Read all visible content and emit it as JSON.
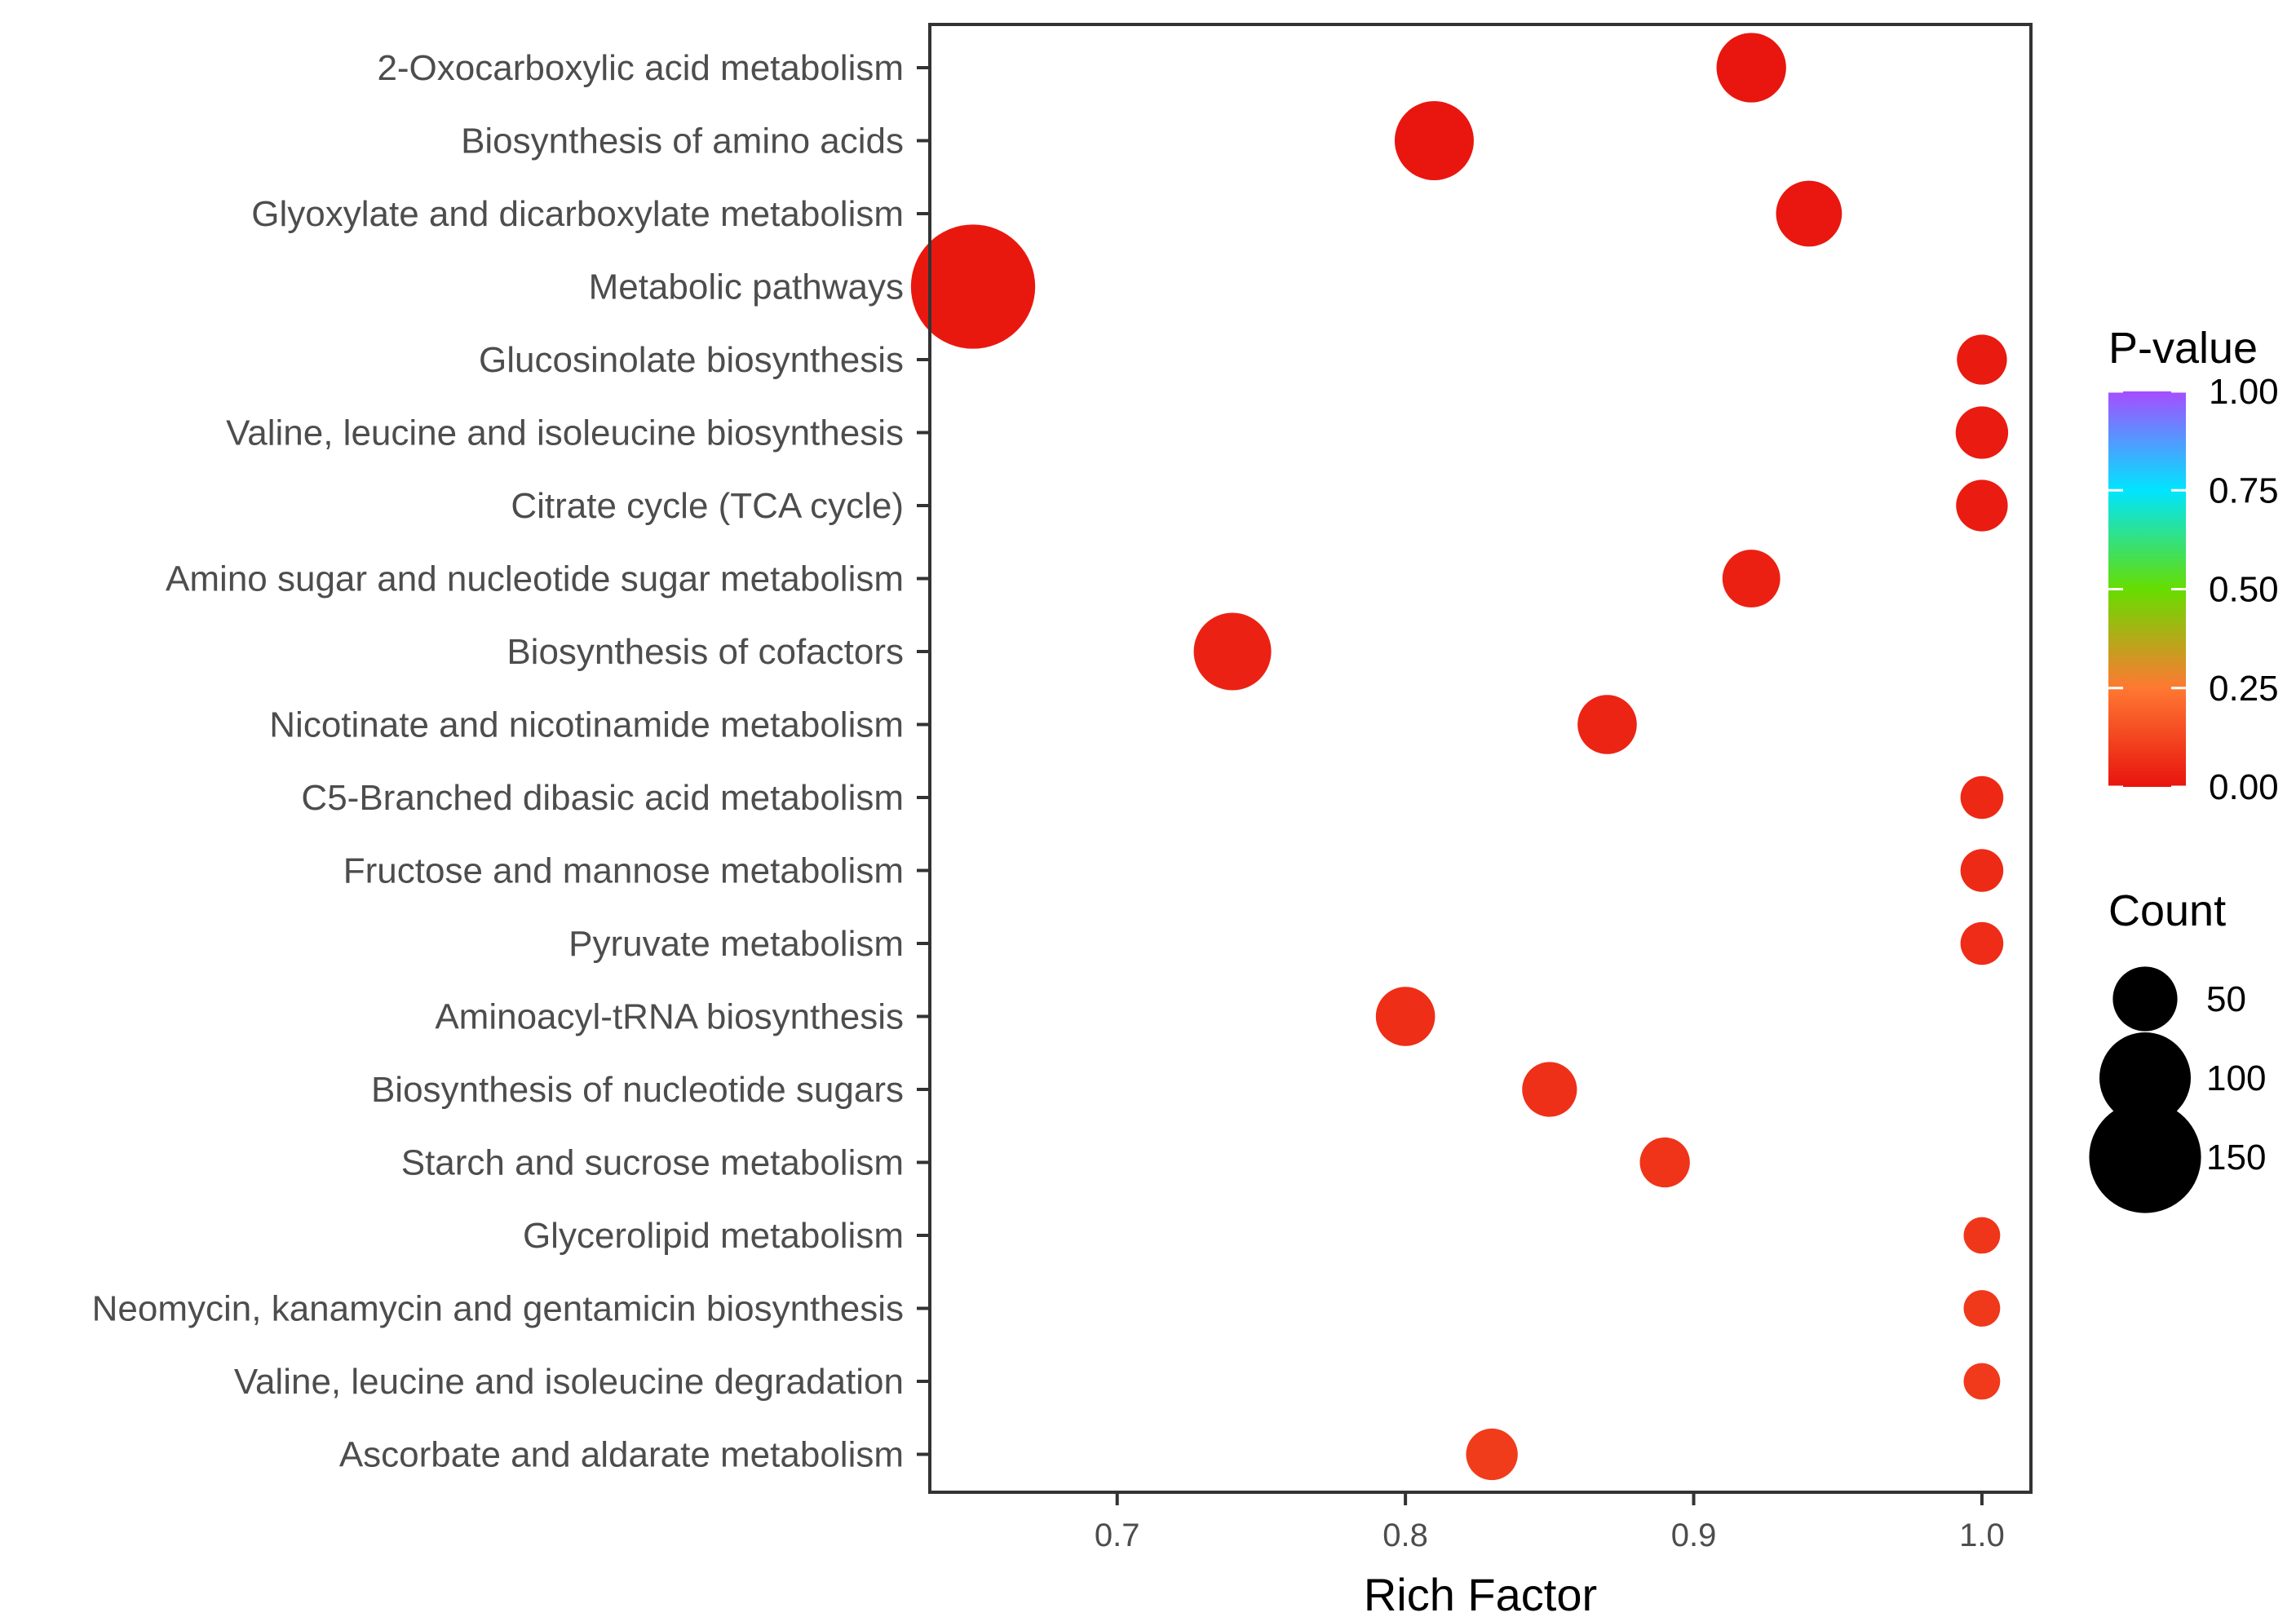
{
  "chart_data": {
    "type": "scatter",
    "subtype": "bubble",
    "title": "",
    "xlabel": "Rich Factor",
    "ylabel": "",
    "xlim": [
      0.635,
      1.017
    ],
    "x_ticks": [
      0.7,
      0.8,
      0.9,
      1.0
    ],
    "x_tick_labels": [
      "0.7",
      "0.8",
      "0.9",
      "1.0"
    ],
    "grid": false,
    "color_legend": {
      "title": "P-value",
      "min": 0.0,
      "max": 1.0,
      "ticks": [
        "1.00",
        "0.75",
        "0.50",
        "0.25",
        "0.00"
      ],
      "tick_values": [
        1.0,
        0.75,
        0.5,
        0.25,
        0.0
      ],
      "colors": [
        "#e8140e",
        "#ff7832",
        "#66dd00",
        "#00e5ff",
        "#a64dff"
      ]
    },
    "size_legend": {
      "title": "Count",
      "values": [
        50,
        100,
        150
      ],
      "labels": [
        "50",
        "100",
        "150"
      ]
    },
    "points": [
      {
        "pathway": "2-Oxocarboxylic acid metabolism",
        "rich_factor": 0.92,
        "count": 58,
        "p_value": 0.005
      },
      {
        "pathway": "Biosynthesis of amino acids",
        "rich_factor": 0.81,
        "count": 75,
        "p_value": 0.006
      },
      {
        "pathway": "Glyoxylate and dicarboxylate metabolism",
        "rich_factor": 0.94,
        "count": 52,
        "p_value": 0.008
      },
      {
        "pathway": "Metabolic pathways",
        "rich_factor": 0.65,
        "count": 185,
        "p_value": 0.01
      },
      {
        "pathway": "Glucosinolate biosynthesis",
        "rich_factor": 1.0,
        "count": 30,
        "p_value": 0.015
      },
      {
        "pathway": "Valine, leucine and isoleucine biosynthesis",
        "rich_factor": 1.0,
        "count": 33,
        "p_value": 0.017
      },
      {
        "pathway": "Citrate cycle (TCA cycle)",
        "rich_factor": 1.0,
        "count": 32,
        "p_value": 0.02
      },
      {
        "pathway": "Amino sugar and nucleotide sugar metabolism",
        "rich_factor": 0.92,
        "count": 40,
        "p_value": 0.03
      },
      {
        "pathway": "Biosynthesis of cofactors",
        "rich_factor": 0.74,
        "count": 72,
        "p_value": 0.035
      },
      {
        "pathway": "Nicotinate and nicotinamide metabolism",
        "rich_factor": 0.87,
        "count": 42,
        "p_value": 0.04
      },
      {
        "pathway": "C5-Branched dibasic acid metabolism",
        "rich_factor": 1.0,
        "count": 22,
        "p_value": 0.05
      },
      {
        "pathway": "Fructose and mannose metabolism",
        "rich_factor": 1.0,
        "count": 22,
        "p_value": 0.055
      },
      {
        "pathway": "Pyruvate metabolism",
        "rich_factor": 1.0,
        "count": 22,
        "p_value": 0.06
      },
      {
        "pathway": "Aminoacyl-tRNA biosynthesis",
        "rich_factor": 0.8,
        "count": 42,
        "p_value": 0.065
      },
      {
        "pathway": "Biosynthesis of nucleotide sugars",
        "rich_factor": 0.85,
        "count": 36,
        "p_value": 0.07
      },
      {
        "pathway": "Starch and sucrose metabolism",
        "rich_factor": 0.89,
        "count": 30,
        "p_value": 0.08
      },
      {
        "pathway": "Glycerolipid metabolism",
        "rich_factor": 1.0,
        "count": 16,
        "p_value": 0.085
      },
      {
        "pathway": "Neomycin, kanamycin and gentamicin biosynthesis",
        "rich_factor": 1.0,
        "count": 16,
        "p_value": 0.09
      },
      {
        "pathway": "Valine, leucine and isoleucine degradation",
        "rich_factor": 1.0,
        "count": 16,
        "p_value": 0.095
      },
      {
        "pathway": "Ascorbate and aldarate metabolism",
        "rich_factor": 0.83,
        "count": 32,
        "p_value": 0.1
      }
    ]
  }
}
